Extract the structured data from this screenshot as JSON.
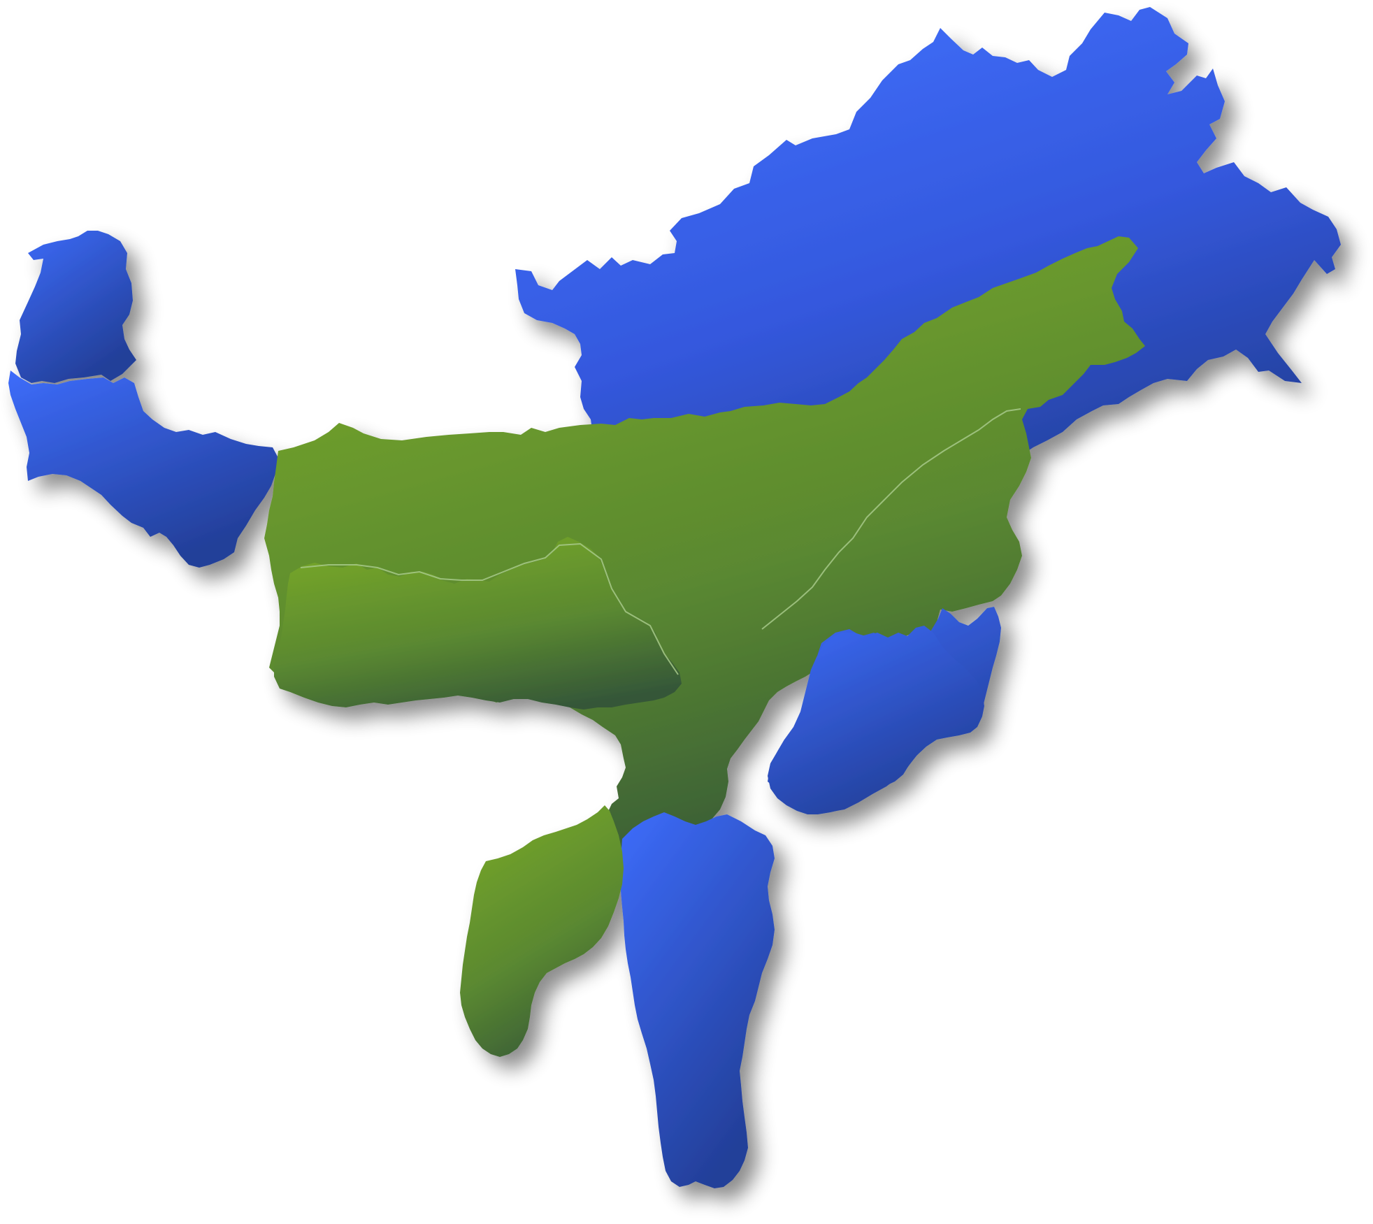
{
  "map": {
    "regions": [
      {
        "id": "sikkim",
        "group": "blue"
      },
      {
        "id": "north-bengal-corridor",
        "group": "blue"
      },
      {
        "id": "arunachal-pradesh",
        "group": "blue"
      },
      {
        "id": "assam",
        "group": "green"
      },
      {
        "id": "meghalaya",
        "group": "green"
      },
      {
        "id": "nagaland",
        "group": "blue"
      },
      {
        "id": "manipur",
        "group": "blue"
      },
      {
        "id": "mizoram",
        "group": "blue"
      },
      {
        "id": "tripura",
        "group": "green"
      }
    ],
    "colors": {
      "blue_light": "#3d6cfb",
      "blue_dark": "#233f99",
      "green_light": "#76a62a",
      "green_dark": "#345638",
      "border": "#a7c98a",
      "shadow": "#9a9a9a",
      "background": "#ffffff"
    }
  }
}
